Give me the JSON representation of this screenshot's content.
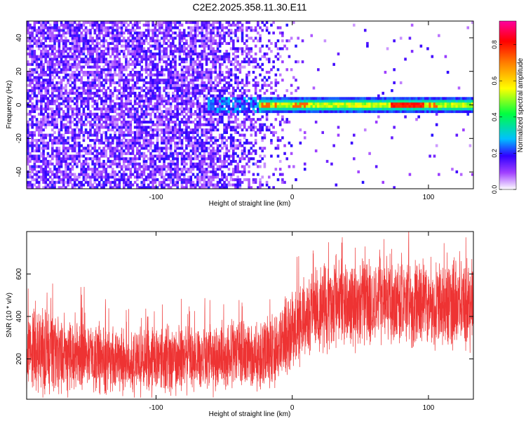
{
  "title": "C2E2.2025.358.11.30.E11",
  "chart_data": [
    {
      "type": "heatmap",
      "title": "C2E2.2025.358.11.30.E11",
      "xlabel": "Height of straight line (km)",
      "ylabel": "Frequency (Hz)",
      "xlim": [
        -195,
        133
      ],
      "ylim": [
        -50,
        50
      ],
      "xticks": [
        -100,
        0,
        100
      ],
      "yticks": [
        -40,
        -20,
        0,
        20,
        40
      ],
      "colormap": "rainbow",
      "colorbar": {
        "label": "Normalized spectral amplitude",
        "range": [
          0,
          0.93
        ],
        "ticks": [
          0.0,
          0.2,
          0.4,
          0.6,
          0.8
        ]
      },
      "features": [
        {
          "name": "broadband noise",
          "x_range": [
            -195,
            -20
          ],
          "freq_range": [
            -50,
            50
          ],
          "amplitude": 0.1
        },
        {
          "name": "emerging signal",
          "x_range": [
            -60,
            -20
          ],
          "freq": 0,
          "amplitude": 0.25
        },
        {
          "name": "carrier line",
          "x_range": [
            -25,
            133
          ],
          "freq": 0,
          "amplitude": 0.35
        },
        {
          "name": "peak",
          "x_range": [
            75,
            95
          ],
          "freq": 0,
          "amplitude": 0.9
        }
      ]
    },
    {
      "type": "line",
      "xlabel": "Height of straight line (km)",
      "ylabel": "SNR (10 * v/v)",
      "xlim": [
        -195,
        133
      ],
      "ylim": [
        10,
        800
      ],
      "xticks": [
        -100,
        0,
        100
      ],
      "yticks": [
        200,
        400,
        600
      ],
      "line_color": "#ee3333",
      "envelope": {
        "x": [
          -195,
          -170,
          -150,
          -140,
          -120,
          -100,
          -80,
          -60,
          -40,
          -20,
          -10,
          0,
          10,
          20,
          30,
          40,
          60,
          80,
          100,
          120,
          133
        ],
        "mean": [
          230,
          230,
          220,
          200,
          190,
          195,
          200,
          205,
          215,
          225,
          260,
          320,
          390,
          440,
          460,
          470,
          470,
          470,
          460,
          465,
          470
        ],
        "spread": [
          190,
          190,
          180,
          160,
          160,
          160,
          160,
          160,
          165,
          170,
          180,
          190,
          200,
          200,
          195,
          195,
          195,
          195,
          195,
          195,
          195
        ]
      }
    }
  ]
}
